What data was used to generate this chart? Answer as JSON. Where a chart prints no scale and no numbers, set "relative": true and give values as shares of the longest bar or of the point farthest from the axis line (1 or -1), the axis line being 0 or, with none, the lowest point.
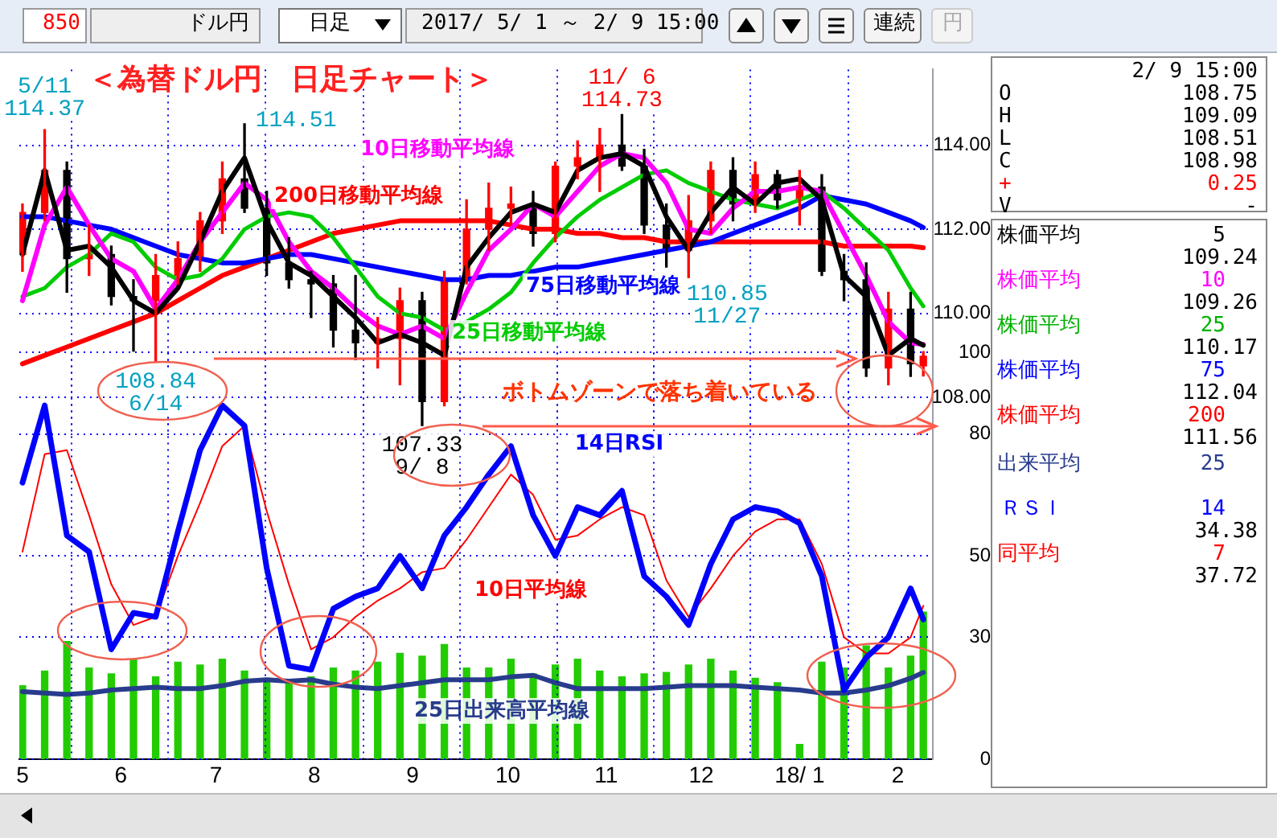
{
  "chart_data": [
    {
      "type": "candlestick",
      "title": "＜為替ドル円　日足チャート＞",
      "x": [
        "2017-05-01",
        "2017-05-08",
        "2017-05-15",
        "2017-05-22",
        "2017-05-29",
        "2017-06-05",
        "2017-06-12",
        "2017-06-19",
        "2017-06-26",
        "2017-07-03",
        "2017-07-10",
        "2017-07-17",
        "2017-07-24",
        "2017-07-31",
        "2017-08-07",
        "2017-08-14",
        "2017-08-21",
        "2017-08-28",
        "2017-09-04",
        "2017-09-11",
        "2017-09-18",
        "2017-09-25",
        "2017-10-02",
        "2017-10-09",
        "2017-10-16",
        "2017-10-23",
        "2017-10-30",
        "2017-11-06",
        "2017-11-13",
        "2017-11-20",
        "2017-11-27",
        "2017-12-04",
        "2017-12-11",
        "2017-12-18",
        "2017-12-25",
        "2018-01-01",
        "2018-01-08",
        "2018-01-15",
        "2018-01-22",
        "2018-01-29",
        "2018-02-05",
        "2018-02-09"
      ],
      "ohlc": [
        [
          111.4,
          112.6,
          111.0,
          112.4
        ],
        [
          112.4,
          114.37,
          112.2,
          113.4
        ],
        [
          113.4,
          113.6,
          110.5,
          111.3
        ],
        [
          111.3,
          112.1,
          110.9,
          111.4
        ],
        [
          111.4,
          111.6,
          110.2,
          110.4
        ],
        [
          110.4,
          110.8,
          109.1,
          110.3
        ],
        [
          110.3,
          111.4,
          108.84,
          110.9
        ],
        [
          110.9,
          111.7,
          110.7,
          111.3
        ],
        [
          111.3,
          112.4,
          111.0,
          112.2
        ],
        [
          112.2,
          113.6,
          111.9,
          113.2
        ],
        [
          113.2,
          114.51,
          112.4,
          112.5
        ],
        [
          112.5,
          112.9,
          110.9,
          111.2
        ],
        [
          111.2,
          111.8,
          110.6,
          110.8
        ],
        [
          110.8,
          111.0,
          109.9,
          110.7
        ],
        [
          110.7,
          110.9,
          109.2,
          109.6
        ],
        [
          109.6,
          110.9,
          108.9,
          109.3
        ],
        [
          109.3,
          109.9,
          108.7,
          109.4
        ],
        [
          109.4,
          110.6,
          108.3,
          110.3
        ],
        [
          110.3,
          110.5,
          107.33,
          107.9
        ],
        [
          107.9,
          111.0,
          107.8,
          110.8
        ],
        [
          110.8,
          112.7,
          110.7,
          112.0
        ],
        [
          112.0,
          113.1,
          111.5,
          112.5
        ],
        [
          112.5,
          113.0,
          112.1,
          112.6
        ],
        [
          112.6,
          112.9,
          111.6,
          111.9
        ],
        [
          111.9,
          113.6,
          111.7,
          113.5
        ],
        [
          113.5,
          114.1,
          113.2,
          113.7
        ],
        [
          113.7,
          114.4,
          112.9,
          114.0
        ],
        [
          114.0,
          114.73,
          113.4,
          113.5
        ],
        [
          113.5,
          113.9,
          111.9,
          112.1
        ],
        [
          112.1,
          112.6,
          111.1,
          111.5
        ],
        [
          111.5,
          112.8,
          110.85,
          112.2
        ],
        [
          112.2,
          113.6,
          111.9,
          113.4
        ],
        [
          113.4,
          113.7,
          112.2,
          112.6
        ],
        [
          112.6,
          113.6,
          112.4,
          113.3
        ],
        [
          113.3,
          113.4,
          112.5,
          112.7
        ],
        [
          112.7,
          113.4,
          112.1,
          113.0
        ],
        [
          113.0,
          113.3,
          110.9,
          111.0
        ],
        [
          111.0,
          111.4,
          110.3,
          110.8
        ],
        [
          110.8,
          111.2,
          108.5,
          108.7
        ],
        [
          108.7,
          110.5,
          108.3,
          110.1
        ],
        [
          110.1,
          110.5,
          108.5,
          108.8
        ],
        [
          108.75,
          109.09,
          108.51,
          108.98
        ]
      ],
      "colors": [
        "#ff0000",
        "#ff0000",
        "#000000",
        "#ff0000",
        "#000000",
        "#000000",
        "#ff0000",
        "#ff0000",
        "#ff0000",
        "#ff0000",
        "#000000",
        "#000000",
        "#000000",
        "#000000",
        "#000000",
        "#000000",
        "#ff0000",
        "#ff0000",
        "#000000",
        "#ff0000",
        "#ff0000",
        "#ff0000",
        "#ff0000",
        "#000000",
        "#ff0000",
        "#ff0000",
        "#ff0000",
        "#000000",
        "#000000",
        "#000000",
        "#ff0000",
        "#ff0000",
        "#000000",
        "#ff0000",
        "#000000",
        "#ff0000",
        "#000000",
        "#000000",
        "#000000",
        "#ff0000",
        "#000000",
        "#ff0000"
      ],
      "series": [
        {
          "type": "line",
          "color": "#000000",
          "values": [
            111.4,
            113.4,
            111.5,
            111.6,
            111.1,
            110.3,
            110.0,
            110.6,
            111.7,
            112.9,
            113.7,
            112.2,
            111.2,
            110.9,
            110.4,
            109.9,
            109.3,
            109.5,
            109.3,
            109.0,
            111.1,
            111.8,
            112.4,
            112.6,
            112.4,
            113.4,
            113.7,
            113.8,
            113.5,
            112.3,
            111.5,
            112.4,
            113.0,
            112.6,
            113.1,
            113.2,
            112.7,
            110.9,
            110.4,
            109.0,
            109.4,
            109.24
          ]
        },
        {
          "type": "line",
          "name": "10日移動平均線",
          "color": "#ff00ff",
          "values": [
            110.3,
            112.1,
            113.0,
            112.1,
            111.3,
            111.0,
            110.1,
            110.8,
            111.7,
            112.4,
            113.1,
            112.7,
            111.7,
            111.0,
            110.6,
            110.1,
            109.7,
            109.5,
            109.7,
            109.4,
            110.5,
            111.5,
            112.0,
            112.6,
            112.3,
            112.9,
            113.5,
            113.8,
            113.7,
            113.1,
            112.0,
            111.9,
            112.5,
            112.9,
            112.9,
            113.0,
            112.9,
            111.9,
            110.9,
            109.8,
            109.3,
            109.26
          ]
        },
        {
          "type": "line",
          "name": "25日移動平均線",
          "color": "#00cc00",
          "values": [
            110.4,
            110.6,
            111.1,
            111.4,
            111.9,
            111.7,
            111.1,
            110.8,
            110.9,
            111.3,
            112.0,
            112.3,
            112.4,
            112.3,
            111.8,
            111.1,
            110.4,
            110.0,
            109.9,
            109.6,
            109.8,
            110.1,
            110.5,
            111.2,
            111.8,
            112.3,
            112.7,
            113.0,
            113.3,
            113.4,
            113.1,
            112.9,
            112.7,
            112.6,
            112.5,
            112.7,
            112.9,
            112.5,
            112.0,
            111.5,
            110.6,
            110.17
          ]
        },
        {
          "type": "line",
          "name": "75日移動平均線",
          "color": "#0000ff",
          "values": [
            112.3,
            112.3,
            112.2,
            112.1,
            112.0,
            111.8,
            111.6,
            111.4,
            111.3,
            111.2,
            111.2,
            111.3,
            111.4,
            111.4,
            111.3,
            111.2,
            111.1,
            111.0,
            110.9,
            110.8,
            110.8,
            110.9,
            110.9,
            111.0,
            111.1,
            111.1,
            111.2,
            111.3,
            111.4,
            111.5,
            111.6,
            111.7,
            111.9,
            112.1,
            112.3,
            112.5,
            112.8,
            112.7,
            112.6,
            112.4,
            112.2,
            112.04
          ]
        },
        {
          "type": "line",
          "name": "200日移動平均線",
          "color": "#ff0000",
          "values": [
            108.8,
            109.0,
            109.2,
            109.4,
            109.6,
            109.8,
            110.0,
            110.3,
            110.6,
            110.9,
            111.1,
            111.3,
            111.5,
            111.7,
            111.9,
            112.0,
            112.1,
            112.2,
            112.2,
            112.2,
            112.2,
            112.2,
            112.1,
            112.0,
            112.0,
            111.9,
            111.9,
            111.8,
            111.8,
            111.7,
            111.7,
            111.7,
            111.7,
            111.7,
            111.7,
            111.7,
            111.7,
            111.6,
            111.6,
            111.6,
            111.6,
            111.56
          ]
        }
      ],
      "xlim": [
        "2017-04-30",
        "2018-02-12"
      ],
      "xticks": [
        {
          "value": "2017-05-01",
          "label": null
        },
        {
          "value": "2017-06-01",
          "label": null
        },
        {
          "value": "2017-07-01",
          "label": null
        },
        {
          "value": "2017-08-01",
          "label": null
        },
        {
          "value": "2017-09-01",
          "label": null
        },
        {
          "value": "2017-10-01",
          "label": null
        },
        {
          "value": "2017-11-01",
          "label": null
        },
        {
          "value": "2017-12-01",
          "label": null
        },
        {
          "value": "2018-01-01",
          "label": null
        },
        {
          "value": "2018-02-01",
          "label": null
        }
      ],
      "ylim": [
        107.2,
        115.8
      ],
      "yticks": [
        {
          "value": 108,
          "label": "108.00"
        },
        {
          "value": 110,
          "label": "110.00"
        },
        {
          "value": 112,
          "label": "112.00"
        },
        {
          "value": 114,
          "label": "114.00"
        }
      ],
      "grid": true,
      "marker": "none",
      "tick_labels": "y",
      "annotations": [
        "850",
        "ドル円",
        "日足",
        "2017/ 5/ 1 ～ 2/ 9 15:00",
        "連続",
        "円",
        "2/ 9 15:00",
        "O",
        "108.75",
        "H",
        "109.09",
        "L",
        "108.51",
        "C",
        "108.98",
        "+",
        "0.25",
        "V",
        "-",
        "株価平均",
        "5",
        "109.24",
        "株価平均",
        "10",
        "109.26",
        "株価平均",
        "25",
        "110.17",
        "株価平均",
        "75",
        "112.04",
        "株価平均",
        "200",
        "111.56",
        "出来平均",
        "25",
        "ＲＳＩ",
        "14",
        "34.38",
        "同平均",
        "7",
        "37.72",
        "ボトムゾーンで落ち着いている",
        {
          "text": "5/11",
          "x": "2017-05-08",
          "y": 114.37
        },
        {
          "text": "114.37",
          "x": "2017-05-08",
          "y": 114.37
        },
        {
          "text": "114.51",
          "x": "2017-07-10",
          "y": 114.51
        },
        {
          "text": "108.84",
          "x": "2017-06-12",
          "y": 108.84
        },
        {
          "text": "6/14",
          "x": "2017-06-12",
          "y": 108.84
        },
        {
          "text": "107.33",
          "x": "2017-09-04",
          "y": 107.33
        },
        {
          "text": "9/ 8",
          "x": "2017-09-04",
          "y": 107.33
        },
        {
          "text": "11/ 6",
          "x": "2017-11-06",
          "y": 114.73
        },
        {
          "text": "114.73",
          "x": "2017-11-06",
          "y": 114.73
        },
        {
          "text": "110.85",
          "x": "2017-11-27",
          "y": 110.85
        },
        {
          "text": "11/27",
          "x": "2017-11-27",
          "y": 110.85
        }
      ]
    },
    {
      "type": "line",
      "x": [
        "2017-05-01",
        "2017-05-08",
        "2017-05-15",
        "2017-05-22",
        "2017-05-29",
        "2017-06-05",
        "2017-06-12",
        "2017-06-19",
        "2017-06-26",
        "2017-07-03",
        "2017-07-10",
        "2017-07-17",
        "2017-07-24",
        "2017-07-31",
        "2017-08-07",
        "2017-08-14",
        "2017-08-21",
        "2017-08-28",
        "2017-09-04",
        "2017-09-11",
        "2017-09-18",
        "2017-09-25",
        "2017-10-02",
        "2017-10-09",
        "2017-10-16",
        "2017-10-23",
        "2017-10-30",
        "2017-11-06",
        "2017-11-13",
        "2017-11-20",
        "2017-11-27",
        "2017-12-04",
        "2017-12-11",
        "2017-12-18",
        "2017-12-25",
        "2018-01-01",
        "2018-01-08",
        "2018-01-15",
        "2018-01-22",
        "2018-01-29",
        "2018-02-05",
        "2018-02-09"
      ],
      "series": [
        {
          "name": "14日RSI",
          "color": "#0000ff",
          "values": [
            68,
            87,
            55,
            51,
            27,
            36,
            35,
            56,
            76,
            87,
            82,
            47,
            23,
            22,
            37,
            40,
            42,
            50,
            42,
            55,
            62,
            70,
            77,
            60,
            50,
            62,
            60,
            66,
            45,
            40,
            33,
            48,
            59,
            62,
            61,
            58,
            45,
            17,
            25,
            30,
            42,
            34.38
          ]
        },
        {
          "name": "10日平均線",
          "color": "#ff0000",
          "values": [
            51,
            75,
            76,
            60,
            43,
            33,
            35,
            50,
            63,
            77,
            82,
            61,
            43,
            27,
            30,
            35,
            39,
            42,
            46,
            47,
            54,
            62,
            70,
            65,
            54,
            55,
            59,
            62,
            60,
            44,
            35,
            42,
            50,
            56,
            59,
            59,
            48,
            30,
            26,
            26,
            30,
            37.72
          ]
        }
      ],
      "xlim": [
        "2017-04-30",
        "2018-02-12"
      ],
      "xticks": [
        {
          "value": "2017-05-01",
          "label": "5"
        },
        {
          "value": "2017-06-01",
          "label": "6"
        },
        {
          "value": "2017-07-01",
          "label": "7"
        },
        {
          "value": "2017-08-01",
          "label": "8"
        },
        {
          "value": "2017-09-01",
          "label": "9"
        },
        {
          "value": "2017-10-01",
          "label": "10"
        },
        {
          "value": "2017-11-01",
          "label": "11"
        },
        {
          "value": "2017-12-01",
          "label": "12"
        },
        {
          "value": "2018-01-01",
          "label": "18/ 1"
        },
        {
          "value": "2018-02-01",
          "label": "2"
        }
      ],
      "ylim": [
        0,
        100
      ],
      "yticks": [
        0,
        30,
        50,
        80,
        100
      ],
      "grid": true,
      "marker": "none"
    },
    {
      "type": "bar",
      "relative": true,
      "x": [
        "2017-05-01",
        "2017-05-08",
        "2017-05-15",
        "2017-05-22",
        "2017-05-29",
        "2017-06-05",
        "2017-06-12",
        "2017-06-19",
        "2017-06-26",
        "2017-07-03",
        "2017-07-10",
        "2017-07-17",
        "2017-07-24",
        "2017-07-31",
        "2017-08-07",
        "2017-08-14",
        "2017-08-21",
        "2017-08-28",
        "2017-09-04",
        "2017-09-11",
        "2017-09-18",
        "2017-09-25",
        "2017-10-02",
        "2017-10-09",
        "2017-10-16",
        "2017-10-23",
        "2017-10-30",
        "2017-11-06",
        "2017-11-13",
        "2017-11-20",
        "2017-11-27",
        "2017-12-04",
        "2017-12-11",
        "2017-12-18",
        "2017-12-25",
        "2018-01-01",
        "2018-01-08",
        "2018-01-15",
        "2018-01-22",
        "2018-01-29",
        "2018-02-05",
        "2018-02-09"
      ],
      "series": [
        {
          "color": "#22cc00",
          "values": [
            0.5,
            0.6,
            0.8,
            0.62,
            0.58,
            0.68,
            0.56,
            0.66,
            0.64,
            0.68,
            0.6,
            0.55,
            0.52,
            0.56,
            0.62,
            0.6,
            0.66,
            0.72,
            0.7,
            0.78,
            0.62,
            0.62,
            0.68,
            0.58,
            0.64,
            0.68,
            0.6,
            0.56,
            0.58,
            0.59,
            0.64,
            0.68,
            0.6,
            0.55,
            0.52,
            0.1,
            0.66,
            0.62,
            0.77,
            0.62,
            0.7,
            1
          ]
        },
        {
          "type": "line",
          "name": "25日出来高平均線",
          "color": "#283c8c",
          "values": [
            0.46,
            0.45,
            0.44,
            0.45,
            0.47,
            0.48,
            0.49,
            0.48,
            0.48,
            0.5,
            0.53,
            0.54,
            0.53,
            0.54,
            0.51,
            0.49,
            0.48,
            0.5,
            0.52,
            0.54,
            0.54,
            0.54,
            0.56,
            0.57,
            0.52,
            0.48,
            0.48,
            0.48,
            0.48,
            0.49,
            0.5,
            0.5,
            0.5,
            0.49,
            0.48,
            0.47,
            0.45,
            0.45,
            0.47,
            0.5,
            0.55,
            0.59
          ]
        }
      ],
      "xlim": [
        "2017-04-30",
        "2018-02-12"
      ],
      "tick_labels": false,
      "marker": "none"
    }
  ]
}
